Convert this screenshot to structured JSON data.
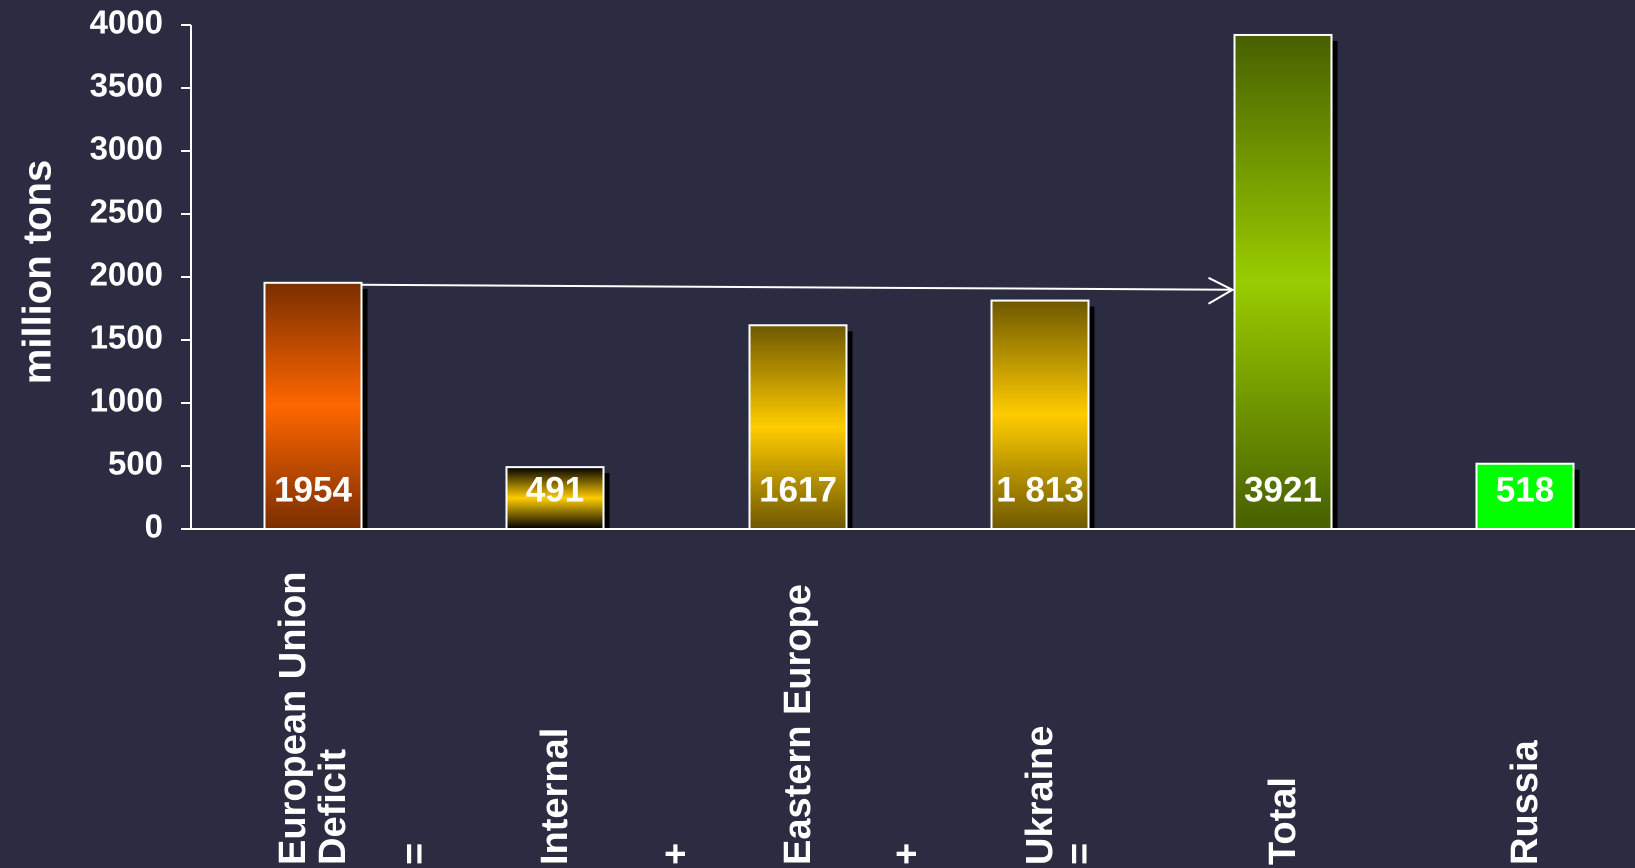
{
  "chart_data": {
    "type": "bar",
    "y_label": "million tons",
    "categories": [
      "European Union Deficit",
      "Internal",
      "Eastern Europe",
      "Ukraine",
      "Total",
      "Russia"
    ],
    "operators": [
      "=",
      "+",
      "+",
      "="
    ],
    "values": [
      1954,
      491,
      1617,
      1813,
      3921,
      518
    ],
    "value_labels": [
      "1954",
      "491",
      "1617",
      "1 813",
      "3921",
      "518"
    ],
    "colors": [
      [
        "#7a2e00",
        "#ff6600"
      ],
      [
        "#000000",
        "#ffcc00"
      ],
      [
        "#6e5800",
        "#ffcc00"
      ],
      [
        "#6e5800",
        "#ffcc00"
      ],
      [
        "#475f00",
        "#99cc00"
      ],
      [
        "#00ff00",
        "#00ff00"
      ]
    ],
    "ylim": [
      0,
      4000
    ],
    "yticks": [
      0,
      500,
      1000,
      1500,
      2000,
      2500,
      3000,
      3500,
      4000
    ]
  }
}
